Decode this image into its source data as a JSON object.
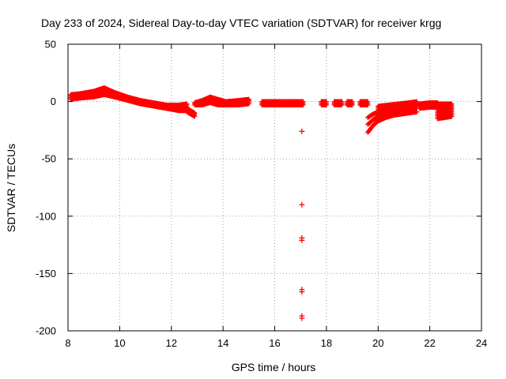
{
  "chart_data": {
    "type": "scatter",
    "title": "Day 233 of 2024, Sidereal Day-to-day VTEC variation (SDTVAR) for receiver krgg",
    "xlabel": "GPS time / hours",
    "ylabel": "SDTVAR / TECUs",
    "xlim": [
      8,
      24
    ],
    "ylim": [
      -200,
      50
    ],
    "xticks": [
      8,
      10,
      12,
      14,
      16,
      18,
      20,
      22,
      24
    ],
    "yticks": [
      50,
      0,
      -50,
      -100,
      -150,
      -200
    ],
    "xtick_labels": [
      "8",
      "10",
      "12",
      "14",
      "16",
      "18",
      "20",
      "22",
      "24"
    ],
    "ytick_labels": [
      "50",
      "0",
      "-50",
      "-100",
      "-150",
      "-200"
    ],
    "grid": true,
    "marker": "plus",
    "color": "#ff0000",
    "series": [
      {
        "name": "SDTVAR",
        "bands": [
          {
            "x": [
              8.1,
              8.5,
              9.0,
              9.4,
              9.8,
              10.3,
              10.8,
              11.3,
              11.8,
              12.3,
              12.6
            ],
            "upper": [
              6,
              7,
              9,
              12,
              8,
              4,
              1,
              -1,
              -3,
              -3,
              -2
            ],
            "lower": [
              2,
              3,
              4,
              6,
              4,
              1,
              -2,
              -4,
              -6,
              -8,
              -8
            ]
          },
          {
            "x": [
              12.6,
              12.75,
              12.9
            ],
            "upper": [
              -6,
              -8,
              -10
            ],
            "lower": [
              -9,
              -11,
              -13
            ]
          },
          {
            "x": [
              12.9,
              13.2,
              13.5,
              13.8,
              14.1,
              14.6,
              15.0
            ],
            "upper": [
              -1,
              1,
              4,
              2,
              0,
              1,
              2
            ],
            "lower": [
              -3,
              -3,
              -1,
              -3,
              -3,
              -3,
              -2
            ]
          },
          {
            "x": [
              15.5,
              16.0,
              16.5,
              17.0,
              17.1
            ],
            "upper": [
              0,
              0,
              0,
              0,
              0
            ],
            "lower": [
              -3,
              -3,
              -3,
              -3,
              -3
            ]
          },
          {
            "x": [
              17.8,
              18.0
            ],
            "upper": [
              0,
              0
            ],
            "lower": [
              -3,
              -3
            ]
          },
          {
            "x": [
              18.3,
              18.6
            ],
            "upper": [
              0,
              0
            ],
            "lower": [
              -3,
              -3
            ]
          },
          {
            "x": [
              18.8,
              19.0
            ],
            "upper": [
              0,
              0
            ],
            "lower": [
              -3,
              -3
            ]
          },
          {
            "x": [
              19.3,
              19.6
            ],
            "upper": [
              0,
              0
            ],
            "lower": [
              -3,
              -3
            ]
          },
          {
            "x": [
              20.0,
              20.4,
              20.8,
              21.2,
              21.5
            ],
            "upper": [
              -4,
              -3,
              -2,
              -1,
              0
            ],
            "lower": [
              -8,
              -7,
              -6,
              -5,
              -4
            ]
          },
          {
            "x": [
              21.6,
              22.0,
              22.3
            ],
            "upper": [
              -2,
              -1,
              -1
            ],
            "lower": [
              -6,
              -5,
              -5
            ]
          },
          {
            "x": [
              22.3,
              22.6,
              22.85
            ],
            "upper": [
              -2,
              -2,
              -2
            ],
            "lower": [
              -15,
              -14,
              -13
            ]
          }
        ],
        "curves": [
          {
            "x": [
              19.6,
              19.8,
              20.0,
              20.3,
              20.6,
              20.9,
              21.2,
              21.5
            ],
            "y": [
              -27,
              -21,
              -17,
              -14,
              -12,
              -11,
              -10,
              -9
            ]
          },
          {
            "x": [
              19.6,
              19.8,
              20.0,
              20.3,
              20.6,
              20.9,
              21.2,
              21.5
            ],
            "y": [
              -20,
              -16,
              -13,
              -11,
              -9,
              -8,
              -7,
              -6
            ]
          },
          {
            "x": [
              19.6,
              19.8,
              20.0,
              20.3,
              20.6,
              20.9,
              21.2,
              21.5
            ],
            "y": [
              -14,
              -11,
              -9,
              -7,
              -6,
              -5,
              -4,
              -4
            ]
          }
        ],
        "outliers": [
          {
            "x": 17.05,
            "y": -26
          },
          {
            "x": 17.05,
            "y": -90
          },
          {
            "x": 17.05,
            "y": -119
          },
          {
            "x": 17.05,
            "y": -121
          },
          {
            "x": 17.05,
            "y": -164
          },
          {
            "x": 17.05,
            "y": -166
          },
          {
            "x": 17.05,
            "y": -187
          },
          {
            "x": 17.05,
            "y": -189
          }
        ]
      }
    ]
  }
}
